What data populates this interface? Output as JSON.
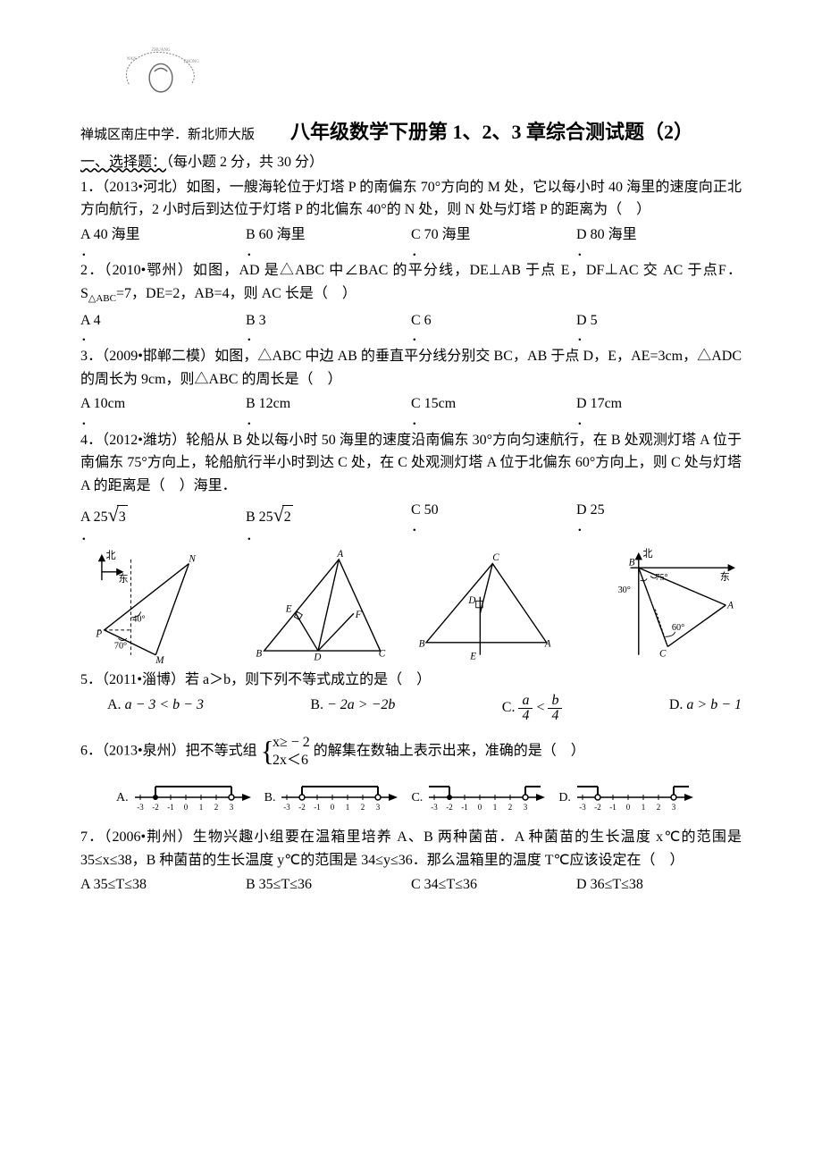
{
  "logo": {
    "text_top": "ZHUANG",
    "text_left": "NAN",
    "text_right": "ZHONG",
    "text_bottom": "XUE",
    "stroke_color": "#808080"
  },
  "header": {
    "school": "禅城区南庄中学．新北师大版",
    "title": "八年级数学下册第 1、2、3 章综合测试题（2）"
  },
  "section1": {
    "title": "一、选择题：",
    "note": "（每小题 2 分，共 30 分）"
  },
  "q1": {
    "stem": "1．（2013•河北）如图，一艘海轮位于灯塔 P 的南偏东 70°方向的 M 处，它以每小时 40 海里的速度向正北方向航行，2 小时后到达位于灯塔 P 的北偏东 40°的 N 处，则 N 处与灯塔 P 的距离为（　）",
    "a_label": "A",
    "a_val": "40 海里",
    "b_label": "B",
    "b_val": "60 海里",
    "c_label": "C",
    "c_val": "70 海里",
    "d_label": "D",
    "d_val": "80 海里",
    "dot": "．"
  },
  "q2": {
    "stem1": "2．（2010•鄂州）如图，AD 是△ABC 中∠BAC 的平分线，DE⊥AB 于点 E，DF⊥AC 交 AC 于点F．S",
    "sub": "△ABC",
    "stem2": "=7，DE=2，AB=4，则 AC 长是（　）",
    "a_label": "A",
    "a_val": "4",
    "b_label": "B",
    "b_val": "3",
    "c_label": "C",
    "c_val": "6",
    "d_label": "D",
    "d_val": "5",
    "dot": "．"
  },
  "q3": {
    "stem": "3．（2009•邯郸二模）如图，△ABC 中边 AB 的垂直平分线分别交 BC，AB 于点 D，E，AE=3cm，△ADC的周长为 9cm，则△ABC 的周长是（　）",
    "a_label": "A",
    "a_val": "10cm",
    "b_label": "B",
    "b_val": "12cm",
    "c_label": "C",
    "c_val": "15cm",
    "d_label": "D",
    "d_val": "17cm",
    "dot": "．"
  },
  "q4": {
    "stem": "4．（2012•潍坊）轮船从 B 处以每小时 50 海里的速度沿南偏东 30°方向匀速航行，在 B 处观测灯塔 A 位于南偏东 75°方向上，轮船航行半小时到达 C 处，在 C 处观测灯塔 A 位于北偏东 60°方向上，则 C 处与灯塔 A 的距离是（　）海里．",
    "a_label": "A",
    "a_val": "25",
    "b_label": "B",
    "b_val": "25",
    "c_label": "C",
    "c_val": "50",
    "d_label": "D",
    "d_val": "25",
    "sqrt_a": "3",
    "sqrt_b": "2",
    "dot": "．"
  },
  "diagrams": {
    "north": "北",
    "east": "东",
    "d1": {
      "P": "P",
      "M": "M",
      "N": "N",
      "a40": "40°",
      "a70": "70°"
    },
    "d2": {
      "A": "A",
      "B": "B",
      "C": "C",
      "D": "D",
      "E": "E",
      "F": "F"
    },
    "d3": {
      "A": "A",
      "B": "B",
      "C": "C",
      "D": "D",
      "E": "E"
    },
    "d4": {
      "A": "A",
      "B": "B",
      "C": "C",
      "a30": "30°",
      "a75": "75°",
      "a60": "60°"
    }
  },
  "q5": {
    "stem": "5．（2011•淄博）若 a＞b，则下列不等式成立的是（　）",
    "a_label": "A.",
    "a_expr": "a − 3 < b − 3",
    "b_label": "B.",
    "b_expr": "− 2a > −2b",
    "c_label": "C.",
    "d_label": "D.",
    "d_expr": "a > b − 1"
  },
  "q6": {
    "stem1": "6．（2013•泉州）把不等式组",
    "line1": "x≥ − 2",
    "line2": "2x＜6",
    "stem2": "的解集在数轴上表示出来，准确的是（　）",
    "labels": {
      "A": "A.",
      "B": "B.",
      "C": "C.",
      "D": "D."
    },
    "ticks": [
      "-3",
      "-2",
      "-1",
      "0",
      "1",
      "2",
      "3"
    ]
  },
  "q7": {
    "stem": "7．（2006•荆州）生物兴趣小组要在温箱里培养 A、B 两种菌苗．A 种菌苗的生长温度 x℃的范围是 35≤x≤38，B 种菌苗的生长温度 y℃的范围是 34≤y≤36．那么温箱里的温度 T℃应该设定在（　）",
    "a_label": "A",
    "a_val": "35≤T≤38",
    "b_label": "B",
    "b_val": "35≤T≤36",
    "c_label": "C",
    "c_val": "34≤T≤36",
    "d_label": "D",
    "d_val": "36≤T≤38"
  }
}
